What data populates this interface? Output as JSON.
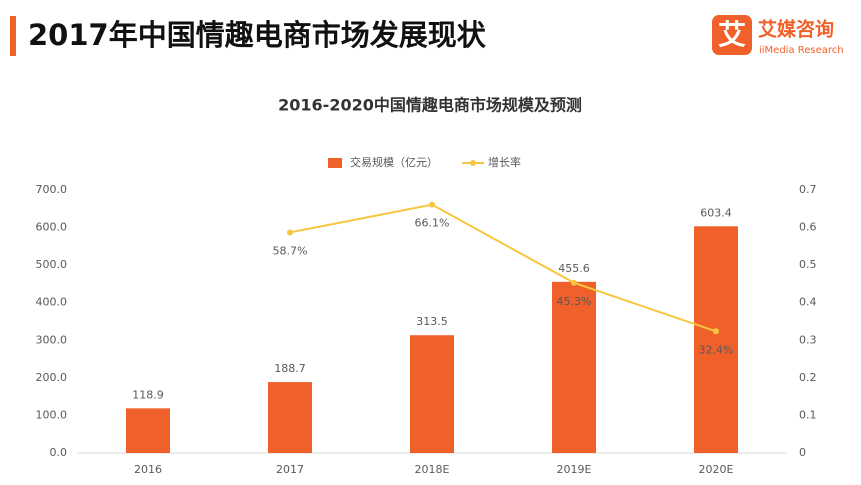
{
  "header": {
    "title": "2017年中国情趣电商市场发展现状",
    "logo_icon": "艾",
    "logo_name": "艾媒咨询",
    "logo_sub": "iiMedia Research"
  },
  "chart_data": {
    "type": "bar",
    "title": "2016-2020中国情趣电商市场规模及预测",
    "categories": [
      "2016",
      "2017",
      "2018E",
      "2019E",
      "2020E"
    ],
    "series": [
      {
        "name": "交易规模（亿元）",
        "type": "bar",
        "color": "#f0602b",
        "values": [
          118.9,
          188.7,
          313.5,
          455.6,
          603.4
        ]
      },
      {
        "name": "增长率",
        "type": "line",
        "axis": "y2",
        "color": "#f6c63e",
        "values": [
          null,
          0.587,
          0.661,
          0.453,
          0.324
        ],
        "value_labels": [
          null,
          "58.7%",
          "66.1%",
          "45.3%",
          "32.4%"
        ]
      }
    ],
    "ylim": [
      0,
      700
    ],
    "yticks": [
      {
        "value": 0,
        "label": "0.0"
      },
      {
        "value": 100,
        "label": "100.0"
      },
      {
        "value": 200,
        "label": "200.0"
      },
      {
        "value": 300,
        "label": "300.0"
      },
      {
        "value": 400,
        "label": "400.0"
      },
      {
        "value": 500,
        "label": "500.0"
      },
      {
        "value": 600,
        "label": "600.0"
      },
      {
        "value": 700,
        "label": "700.0"
      }
    ],
    "y2lim": [
      0,
      0.7
    ],
    "y2ticks": [
      0,
      0.1,
      0.2,
      0.3,
      0.4,
      0.5,
      0.6,
      0.7
    ],
    "legend": "top"
  }
}
